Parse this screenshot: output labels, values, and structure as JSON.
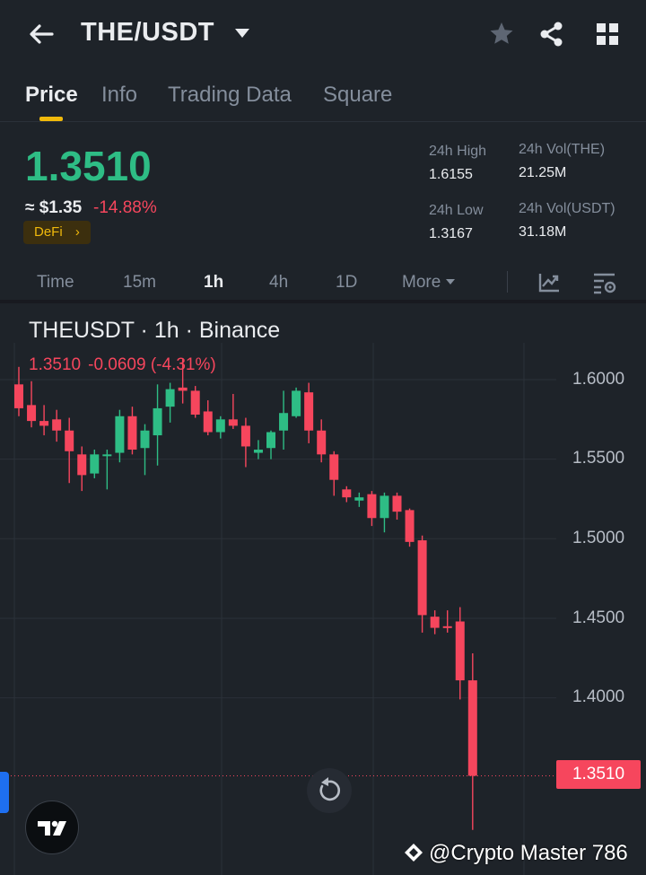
{
  "header": {
    "pair": "THE/USDT",
    "icons": [
      "back-arrow-icon",
      "chevron-down-icon",
      "star-icon",
      "share-icon",
      "grid-icon"
    ]
  },
  "tabs": [
    {
      "label": "Price",
      "active": true
    },
    {
      "label": "Info",
      "active": false
    },
    {
      "label": "Trading Data",
      "active": false
    },
    {
      "label": "Square",
      "active": false
    }
  ],
  "ticker": {
    "last_price": "1.3510",
    "usd_price": "≈ $1.35",
    "change_pct": "-14.88%",
    "tag": "DeFi",
    "high_label": "24h High",
    "high_value": "1.6155",
    "low_label": "24h Low",
    "low_value": "1.3167",
    "vol_base_label": "24h Vol(THE)",
    "vol_base_value": "21.25M",
    "vol_quote_label": "24h Vol(USDT)",
    "vol_quote_value": "31.18M"
  },
  "intervals": {
    "items": [
      "Time",
      "15m",
      "1h",
      "4h",
      "1D"
    ],
    "active": "1h",
    "more_label": "More",
    "icons": [
      "indicator-chart-icon",
      "chart-settings-icon"
    ]
  },
  "chart": {
    "title": "THEUSDT · 1h · Binance",
    "ohlc_price": "1.3510",
    "ohlc_change": "-0.0609 (-4.31%)",
    "last_badge": "1.3510",
    "y_ticks": [
      "1.6000",
      "1.5500",
      "1.5000",
      "1.4500",
      "1.4000"
    ],
    "colors": {
      "up": "#2ebd85",
      "down": "#f6465d",
      "accent": "#f0b90b"
    }
  },
  "chart_data": {
    "type": "candlestick",
    "ylim": [
      1.31,
      1.635
    ],
    "y_ticks": [
      1.6,
      1.55,
      1.5,
      1.45,
      1.4
    ],
    "candles": [
      {
        "o": 1.597,
        "h": 1.608,
        "l": 1.577,
        "c": 1.582
      },
      {
        "o": 1.584,
        "h": 1.599,
        "l": 1.57,
        "c": 1.574
      },
      {
        "o": 1.574,
        "h": 1.584,
        "l": 1.565,
        "c": 1.571
      },
      {
        "o": 1.575,
        "h": 1.581,
        "l": 1.561,
        "c": 1.568
      },
      {
        "o": 1.568,
        "h": 1.576,
        "l": 1.535,
        "c": 1.555
      },
      {
        "o": 1.553,
        "h": 1.558,
        "l": 1.53,
        "c": 1.54
      },
      {
        "o": 1.541,
        "h": 1.556,
        "l": 1.538,
        "c": 1.553
      },
      {
        "o": 1.553,
        "h": 1.556,
        "l": 1.531,
        "c": 1.553
      },
      {
        "o": 1.554,
        "h": 1.581,
        "l": 1.548,
        "c": 1.577
      },
      {
        "o": 1.577,
        "h": 1.583,
        "l": 1.553,
        "c": 1.556
      },
      {
        "o": 1.557,
        "h": 1.572,
        "l": 1.54,
        "c": 1.568
      },
      {
        "o": 1.565,
        "h": 1.597,
        "l": 1.546,
        "c": 1.582
      },
      {
        "o": 1.583,
        "h": 1.598,
        "l": 1.573,
        "c": 1.594
      },
      {
        "o": 1.595,
        "h": 1.613,
        "l": 1.585,
        "c": 1.593
      },
      {
        "o": 1.593,
        "h": 1.596,
        "l": 1.576,
        "c": 1.578
      },
      {
        "o": 1.58,
        "h": 1.587,
        "l": 1.565,
        "c": 1.567
      },
      {
        "o": 1.567,
        "h": 1.577,
        "l": 1.563,
        "c": 1.575
      },
      {
        "o": 1.575,
        "h": 1.591,
        "l": 1.569,
        "c": 1.571
      },
      {
        "o": 1.571,
        "h": 1.576,
        "l": 1.545,
        "c": 1.558
      },
      {
        "o": 1.554,
        "h": 1.562,
        "l": 1.55,
        "c": 1.556
      },
      {
        "o": 1.557,
        "h": 1.568,
        "l": 1.55,
        "c": 1.567
      },
      {
        "o": 1.568,
        "h": 1.593,
        "l": 1.556,
        "c": 1.579
      },
      {
        "o": 1.577,
        "h": 1.595,
        "l": 1.576,
        "c": 1.593
      },
      {
        "o": 1.592,
        "h": 1.598,
        "l": 1.56,
        "c": 1.568
      },
      {
        "o": 1.568,
        "h": 1.575,
        "l": 1.548,
        "c": 1.553
      },
      {
        "o": 1.553,
        "h": 1.555,
        "l": 1.527,
        "c": 1.537
      },
      {
        "o": 1.531,
        "h": 1.533,
        "l": 1.523,
        "c": 1.526
      },
      {
        "o": 1.524,
        "h": 1.529,
        "l": 1.52,
        "c": 1.526
      },
      {
        "o": 1.528,
        "h": 1.53,
        "l": 1.508,
        "c": 1.513
      },
      {
        "o": 1.513,
        "h": 1.529,
        "l": 1.504,
        "c": 1.527
      },
      {
        "o": 1.527,
        "h": 1.529,
        "l": 1.512,
        "c": 1.517
      },
      {
        "o": 1.518,
        "h": 1.519,
        "l": 1.495,
        "c": 1.498
      },
      {
        "o": 1.499,
        "h": 1.502,
        "l": 1.441,
        "c": 1.452
      },
      {
        "o": 1.451,
        "h": 1.455,
        "l": 1.44,
        "c": 1.444
      },
      {
        "o": 1.445,
        "h": 1.455,
        "l": 1.441,
        "c": 1.444
      },
      {
        "o": 1.448,
        "h": 1.457,
        "l": 1.399,
        "c": 1.411
      },
      {
        "o": 1.411,
        "h": 1.428,
        "l": 1.317,
        "c": 1.351
      }
    ]
  },
  "watermark": "@Crypto Master 786"
}
